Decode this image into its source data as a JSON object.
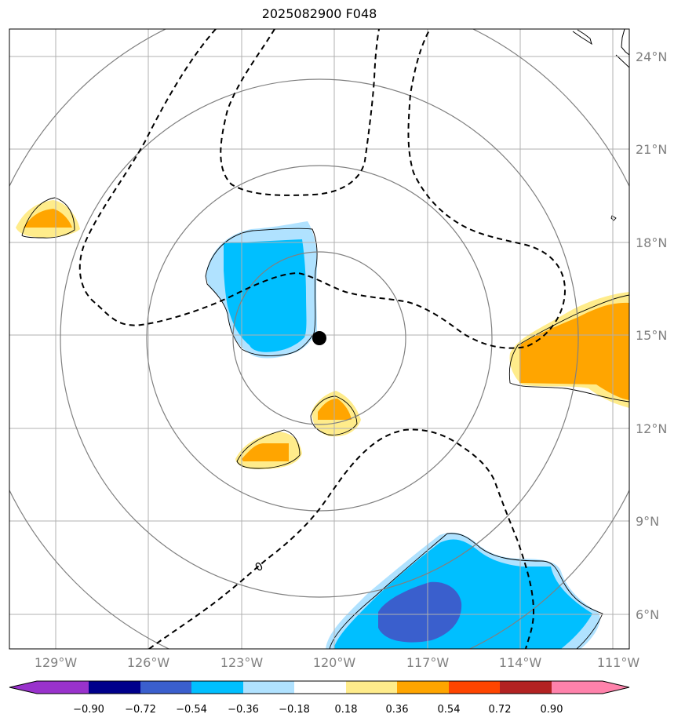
{
  "title": "2025082900 F048",
  "map": {
    "lon_labels": [
      "129°W",
      "126°W",
      "123°W",
      "120°W",
      "117°W",
      "114°W",
      "111°W"
    ],
    "lat_labels": [
      "24°N",
      "21°N",
      "18°N",
      "15°N",
      "12°N",
      "9°N",
      "6°N"
    ],
    "contour_label": "0",
    "center_marker": "storm-center"
  },
  "colorbar": {
    "levels": [
      "−0.90",
      "−0.72",
      "−0.54",
      "−0.36",
      "−0.18",
      "0.18",
      "0.36",
      "0.54",
      "0.72",
      "0.90"
    ],
    "colors": [
      "#9932cc",
      "#00008b",
      "#3a5fcd",
      "#00bfff",
      "#b0e2ff",
      "#ffffff",
      "#ffec8b",
      "#ffa500",
      "#ff4500",
      "#b22222",
      "#ff82ab"
    ]
  }
}
